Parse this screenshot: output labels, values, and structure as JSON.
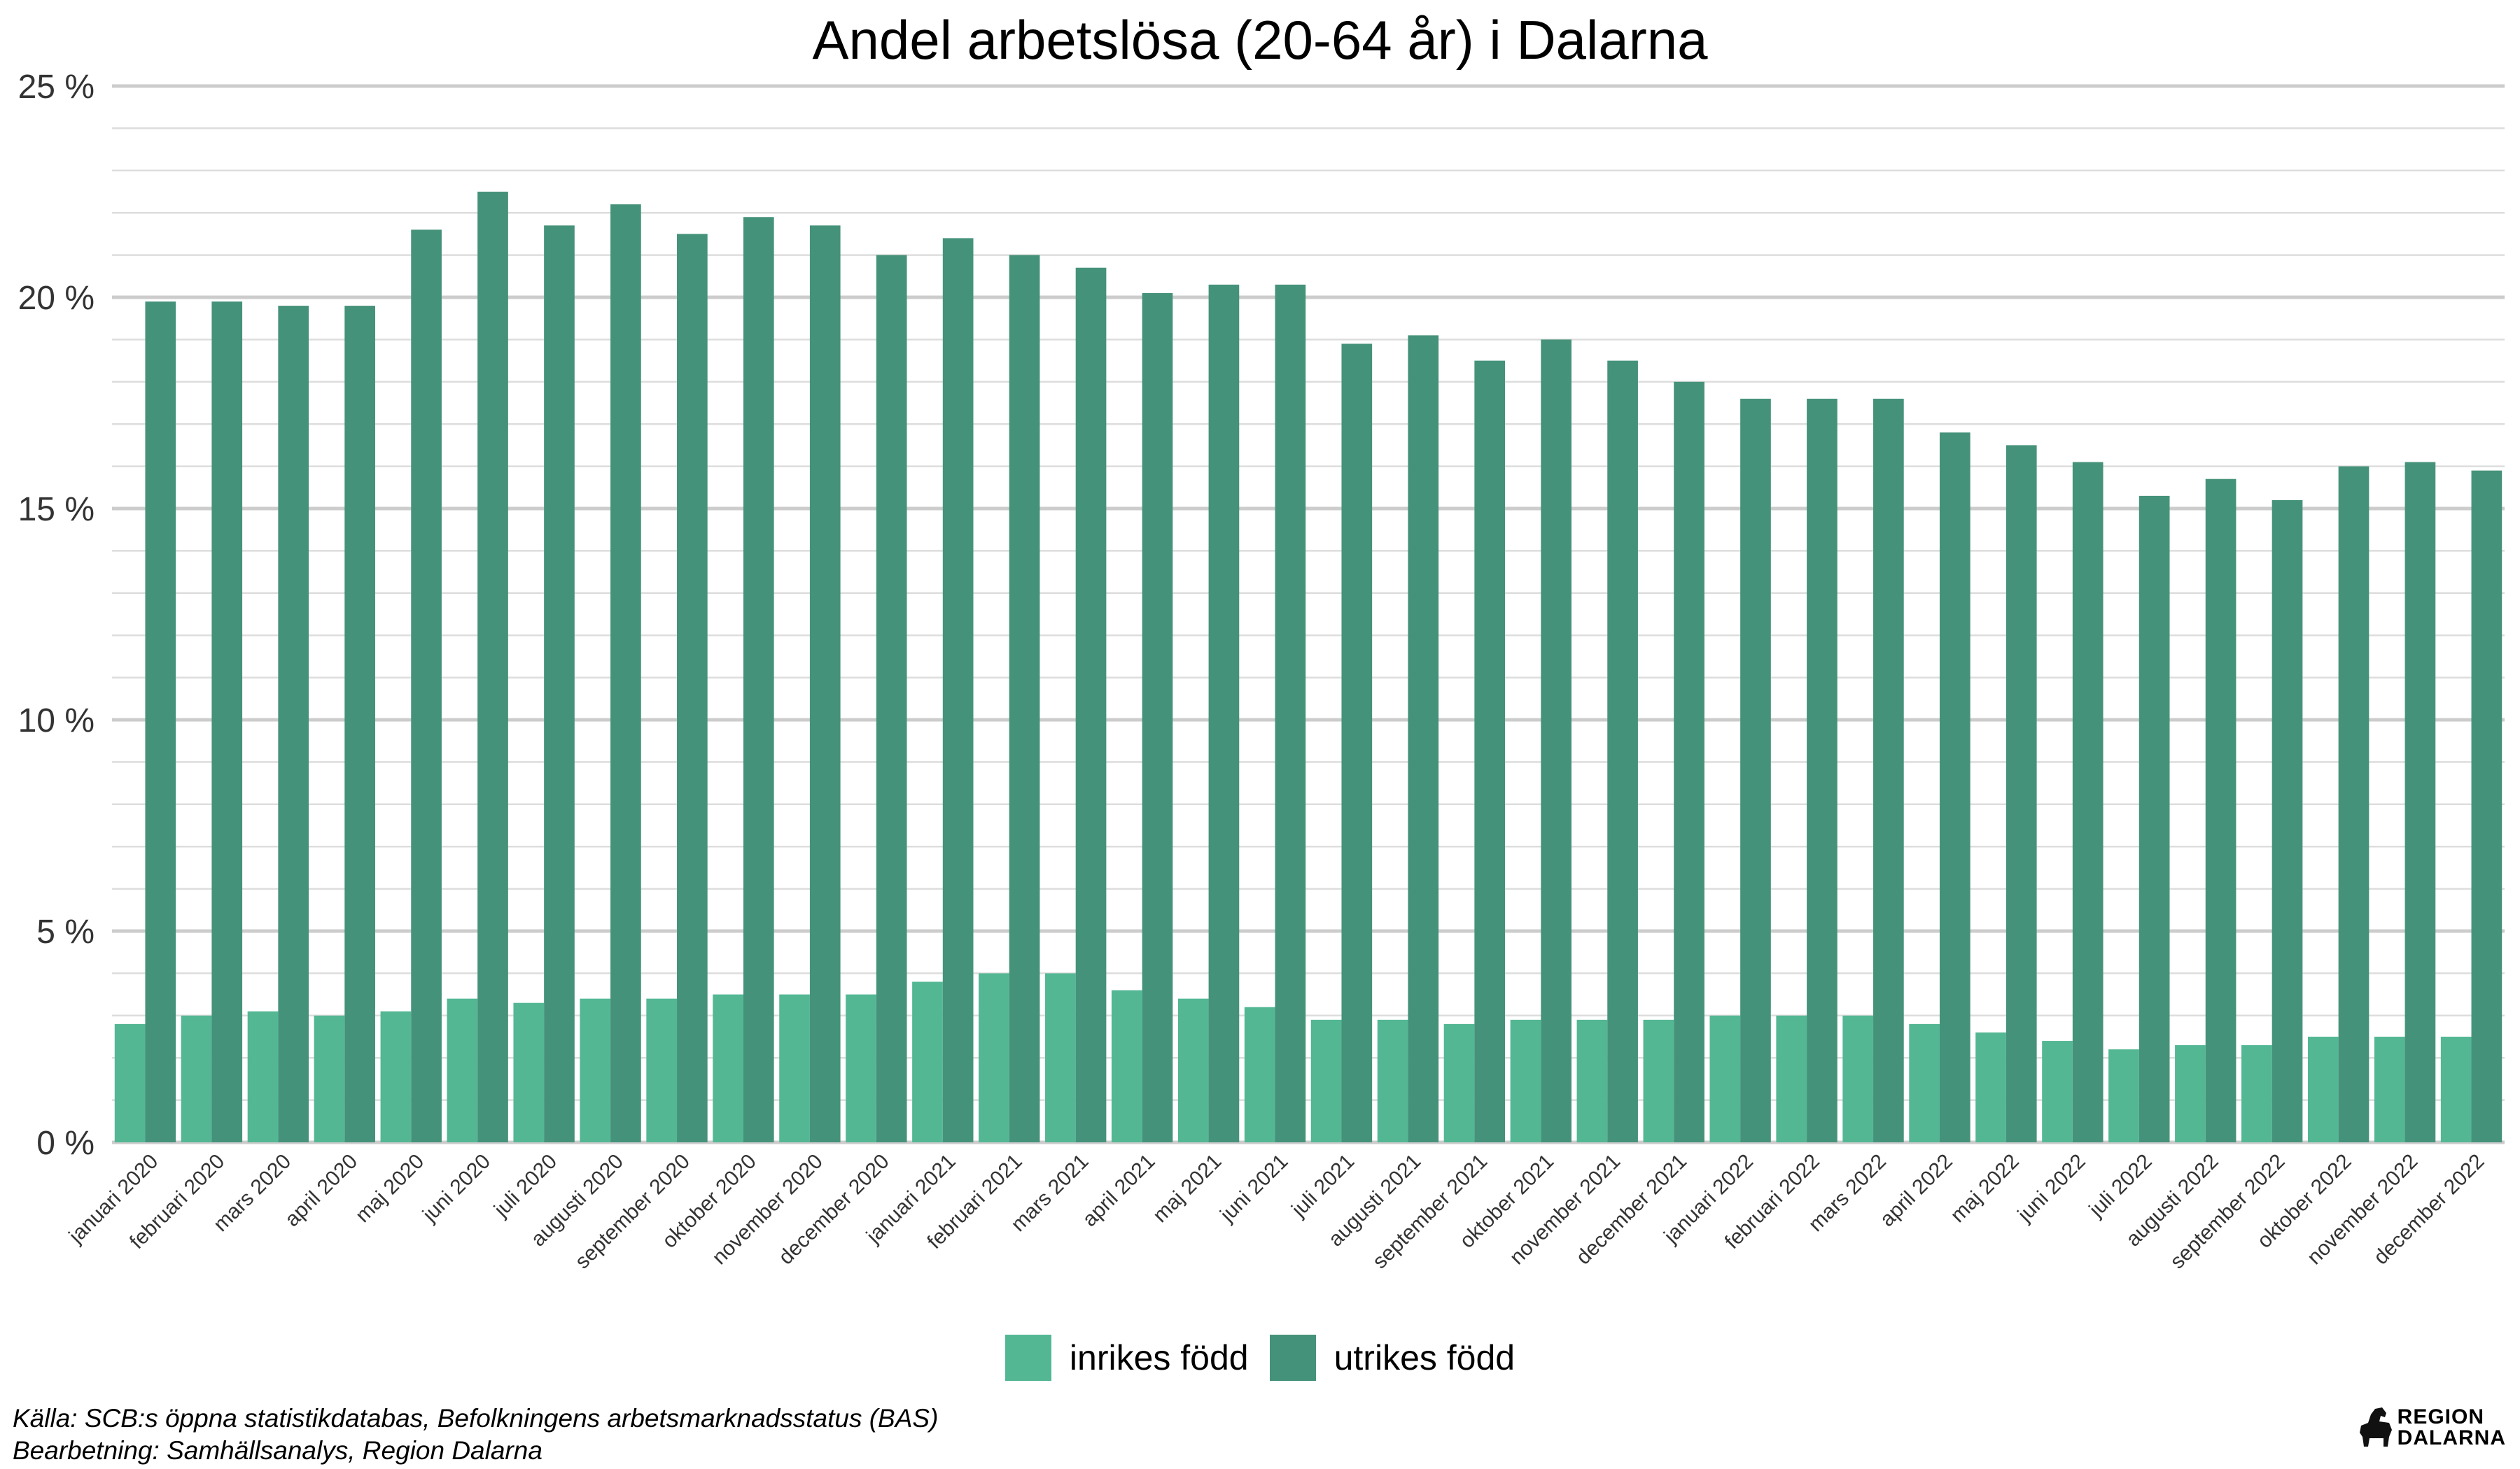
{
  "chart_data": {
    "type": "bar",
    "title": "Andel arbetslösa (20-64 år) i Dalarna",
    "xlabel": "",
    "ylabel": "",
    "ylim": [
      0,
      25
    ],
    "y_ticks": [
      "0 %",
      "5 %",
      "10 %",
      "15 %",
      "20 %",
      "25 %"
    ],
    "grid": true,
    "legend_position": "bottom",
    "categories": [
      "januari 2020",
      "februari 2020",
      "mars 2020",
      "april 2020",
      "maj 2020",
      "juni 2020",
      "juli 2020",
      "augusti 2020",
      "september 2020",
      "oktober 2020",
      "november 2020",
      "december 2020",
      "januari 2021",
      "februari 2021",
      "mars 2021",
      "april 2021",
      "maj 2021",
      "juni 2021",
      "juli 2021",
      "augusti 2021",
      "september 2021",
      "oktober 2021",
      "november 2021",
      "december 2021",
      "januari 2022",
      "februari 2022",
      "mars 2022",
      "april 2022",
      "maj 2022",
      "juni 2022",
      "juli 2022",
      "augusti 2022",
      "september 2022",
      "oktober 2022",
      "november 2022",
      "december 2022"
    ],
    "series": [
      {
        "name": "inrikes född",
        "color": "#53b794",
        "values": [
          2.8,
          3.0,
          3.1,
          3.0,
          3.1,
          3.4,
          3.3,
          3.4,
          3.4,
          3.5,
          3.5,
          3.5,
          3.8,
          4.0,
          4.0,
          3.6,
          3.4,
          3.2,
          2.9,
          2.9,
          2.8,
          2.9,
          2.9,
          2.9,
          3.0,
          3.0,
          3.0,
          2.8,
          2.6,
          2.4,
          2.2,
          2.3,
          2.3,
          2.5,
          2.5,
          2.5
        ]
      },
      {
        "name": "utrikes född",
        "color": "#45927a",
        "values": [
          19.9,
          19.9,
          19.8,
          19.8,
          21.6,
          22.5,
          21.7,
          22.2,
          21.5,
          21.9,
          21.7,
          21.0,
          21.4,
          21.0,
          20.7,
          20.1,
          20.3,
          20.3,
          18.9,
          19.1,
          18.5,
          19.0,
          18.5,
          18.0,
          17.6,
          17.6,
          17.6,
          16.8,
          16.5,
          16.1,
          15.3,
          15.7,
          15.2,
          16.0,
          16.1,
          15.9
        ]
      }
    ]
  },
  "footer": {
    "source": "Källa: SCB:s öppna statistikdatabas, Befolkningens arbetsmarknadsstatus (BAS)",
    "processing": "Bearbetning: Samhällsanalys, Region Dalarna"
  },
  "logo": {
    "line1": "REGION",
    "line2": "DALARNA",
    "icon": "dala-horse-icon"
  }
}
